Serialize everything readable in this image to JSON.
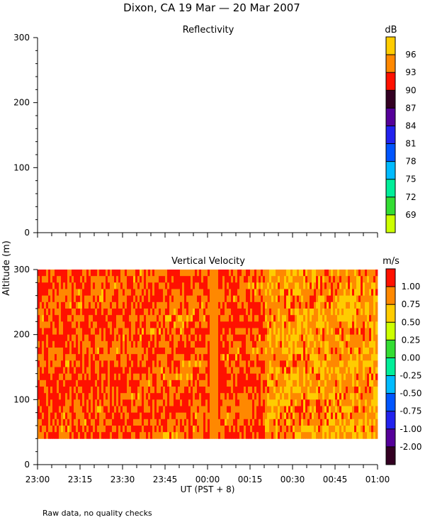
{
  "title": "Dixon, CA 19 Mar — 20 Mar 2007",
  "footer_note": "Raw data, no quality checks",
  "colors": {
    "axis": "#000000",
    "background": "#ffffff"
  },
  "chart_data": [
    {
      "type": "heatmap",
      "title": "Reflectivity",
      "ylabel": "Altitude (m)",
      "xlabel": "",
      "ylim": [
        0,
        300
      ],
      "yticks": [
        "0",
        "100",
        "200",
        "300"
      ],
      "xlim": [
        0,
        120
      ],
      "has_data": false,
      "colorbar": {
        "unit": "dB",
        "ticks": [
          "69",
          "72",
          "75",
          "78",
          "81",
          "84",
          "87",
          "90",
          "93",
          "96"
        ],
        "colors": [
          "#ccff00",
          "#33dd33",
          "#00ee99",
          "#00bbff",
          "#0055ff",
          "#2222ee",
          "#550099",
          "#330022",
          "#ff1100",
          "#ff8800",
          "#ffcc00"
        ]
      }
    },
    {
      "type": "heatmap",
      "title": "Vertical Velocity",
      "ylabel": "Altitude (m)",
      "xlabel": "UT (PST + 8)",
      "ylim": [
        0,
        300
      ],
      "yticks": [
        "0",
        "100",
        "200",
        "300"
      ],
      "xlim": [
        0,
        120
      ],
      "xticks": [
        "23:00",
        "23:15",
        "23:30",
        "23:45",
        "00:00",
        "00:15",
        "00:30",
        "00:45",
        "01:00"
      ],
      "data_altitude_range": [
        40,
        300
      ],
      "has_data": true,
      "colorbar": {
        "unit": "m/s",
        "ticks": [
          "-2.00",
          "-1.00",
          "-0.75",
          "-0.50",
          "-0.25",
          "0.00",
          "0.25",
          "0.50",
          "0.75",
          "1.00"
        ],
        "colors": [
          "#330022",
          "#550099",
          "#2222ee",
          "#0055ff",
          "#00bbff",
          "#00ee99",
          "#33dd33",
          "#ccff00",
          "#ffcc00",
          "#ff8800",
          "#ff1100"
        ]
      }
    }
  ]
}
